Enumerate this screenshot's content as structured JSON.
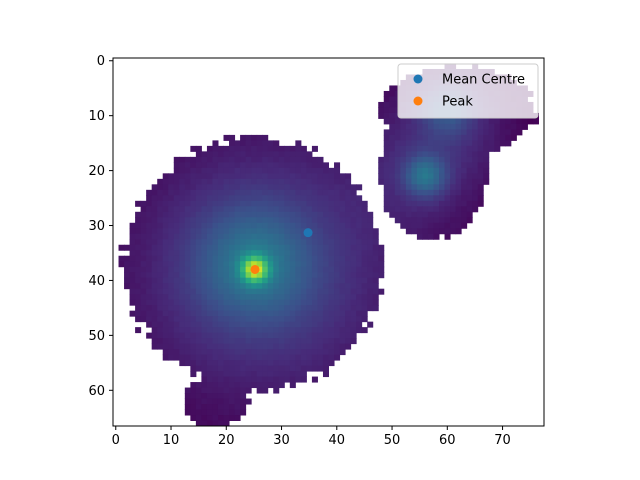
{
  "chart_data": {
    "type": "heatmap",
    "colormap": "viridis",
    "background": "#ffffff",
    "xlim": [
      -0.5,
      77.5
    ],
    "ylim": [
      66.5,
      -0.5
    ],
    "y_inverted": true,
    "xticks": [
      0,
      10,
      20,
      30,
      40,
      50,
      60,
      70
    ],
    "yticks": [
      0,
      10,
      20,
      30,
      40,
      50,
      60
    ],
    "grid": false,
    "legend_position": "top-right",
    "sources": [
      {
        "cx": 25.2,
        "cy": 38.0,
        "amp": 1.0,
        "sigma": 1.6
      },
      {
        "cx": 25.0,
        "cy": 37.0,
        "amp": 0.35,
        "sigma": 7.0
      },
      {
        "cx": 27.0,
        "cy": 38.0,
        "amp": 0.25,
        "sigma": 16.0
      },
      {
        "cx": 56.0,
        "cy": 21.0,
        "amp": 0.4,
        "sigma": 2.6
      },
      {
        "cx": 56.0,
        "cy": 19.0,
        "amp": 0.12,
        "sigma": 8.0
      },
      {
        "cx": 60.0,
        "cy": 9.0,
        "amp": 0.25,
        "sigma": 3.2
      },
      {
        "cx": 62.0,
        "cy": 10.0,
        "amp": 0.1,
        "sigma": 7.0
      }
    ],
    "mask_ellipses": [
      {
        "cx": 25.0,
        "cy": 37.0,
        "rx": 23.5,
        "ry": 23.0
      },
      {
        "cx": 18.0,
        "cy": 62.0,
        "rx": 6.0,
        "ry": 4.5
      },
      {
        "cx": 57.5,
        "cy": 20.0,
        "rx": 10.0,
        "ry": 12.5
      },
      {
        "cx": 62.0,
        "cy": 9.0,
        "rx": 14.0,
        "ry": 8.0
      },
      {
        "cx": 44.0,
        "cy": 36.0,
        "rx": 4.5,
        "ry": 7.0
      }
    ],
    "points": [
      {
        "name": "Mean Centre",
        "x": 34.8,
        "y": 31.3,
        "color": "#1f77b4"
      },
      {
        "name": "Peak",
        "x": 25.2,
        "y": 38.0,
        "color": "#ff7f0e"
      }
    ]
  }
}
